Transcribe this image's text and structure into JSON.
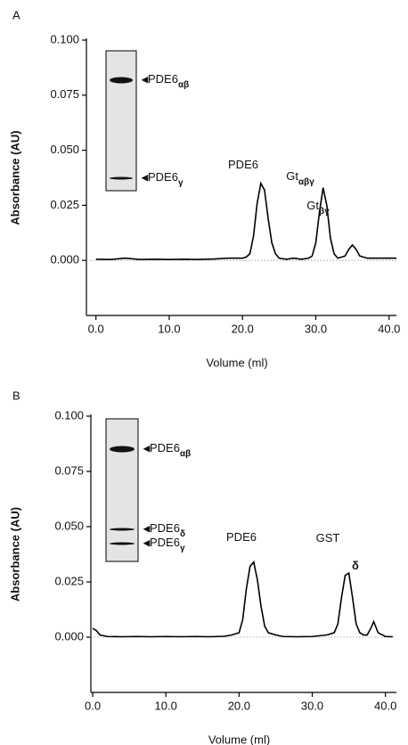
{
  "chart_data": [
    {
      "type": "line",
      "panel": "A",
      "ylabel": "Absorbance (AU)",
      "xlabel": "Volume (ml)",
      "color": "#000000",
      "xlim": [
        -1.3,
        41
      ],
      "ylim": [
        -0.025,
        0.1
      ],
      "xticks": [
        {
          "value": 0,
          "label": "0.0"
        },
        {
          "value": 10,
          "label": "10.0"
        },
        {
          "value": 20,
          "label": "20.0"
        },
        {
          "value": 30,
          "label": "30.0"
        },
        {
          "value": 40,
          "label": "40.0"
        }
      ],
      "yticks": [
        {
          "value": 0,
          "label": "0.000"
        },
        {
          "value": 0.025,
          "label": "0.025"
        },
        {
          "value": 0.05,
          "label": "0.050"
        },
        {
          "value": 0.075,
          "label": "0.075"
        },
        {
          "value": 0.1,
          "label": "0.100"
        }
      ],
      "x": [
        0,
        2,
        4,
        6,
        8,
        10,
        12,
        14,
        16,
        18,
        20,
        20.5,
        21,
        21.5,
        22,
        22.5,
        23,
        23.5,
        24,
        24.5,
        25,
        26,
        27,
        28,
        29,
        29.5,
        30,
        30.5,
        31,
        31.5,
        32,
        32.5,
        33,
        34,
        34.5,
        35,
        35.5,
        36,
        37,
        38,
        40,
        41
      ],
      "values": [
        0.0005,
        0.0004,
        0.001,
        0.0004,
        0.0005,
        0.0004,
        0.0005,
        0.0004,
        0.0006,
        0.001,
        0.001,
        0.0015,
        0.003,
        0.011,
        0.026,
        0.035,
        0.032,
        0.019,
        0.008,
        0.003,
        0.001,
        0.0005,
        0.001,
        0.0005,
        0.001,
        0.002,
        0.008,
        0.022,
        0.033,
        0.025,
        0.01,
        0.003,
        0.001,
        0.002,
        0.005,
        0.007,
        0.005,
        0.002,
        0.001,
        0.001,
        0.001,
        0.001
      ],
      "annotations": [
        {
          "text": "PDE6"
        },
        {
          "text": "Gt",
          "sub": "αβγ"
        },
        {
          "text": "Gt",
          "sub": "βγ"
        }
      ],
      "gel_labels": [
        {
          "text": "PDE6",
          "sub": "αβ"
        },
        {
          "text": "PDE6",
          "sub": "γ"
        }
      ]
    },
    {
      "type": "line",
      "panel": "B",
      "ylabel": "Absorbance (AU)",
      "xlabel": "Volume (ml)",
      "color": "#000000",
      "xlim": [
        -0.25,
        41.5
      ],
      "ylim": [
        -0.025,
        0.1
      ],
      "xticks": [
        {
          "value": 0,
          "label": "0.0"
        },
        {
          "value": 10,
          "label": "10.0"
        },
        {
          "value": 20,
          "label": "20.0"
        },
        {
          "value": 30,
          "label": "30.0"
        },
        {
          "value": 40,
          "label": "40.0"
        }
      ],
      "yticks": [
        {
          "value": 0,
          "label": "0.000"
        },
        {
          "value": 0.025,
          "label": "0.025"
        },
        {
          "value": 0.05,
          "label": "0.050"
        },
        {
          "value": 0.075,
          "label": "0.075"
        },
        {
          "value": 0.1,
          "label": "0.100"
        }
      ],
      "x": [
        0,
        0.5,
        1,
        2,
        4,
        6,
        8,
        10,
        12,
        14,
        16,
        18,
        19,
        20,
        20.5,
        21,
        21.5,
        22,
        22.5,
        23,
        23.5,
        24,
        25,
        26,
        28,
        30,
        32,
        33,
        33.5,
        34,
        34.5,
        35,
        35.5,
        36,
        36.5,
        37,
        37.5,
        38,
        38.4,
        39,
        40,
        41
      ],
      "values": [
        0.004,
        0.003,
        0.001,
        0.0003,
        0.0002,
        0.0003,
        0.0002,
        0.0003,
        0.0002,
        0.0003,
        0.0002,
        0.0004,
        0.001,
        0.002,
        0.008,
        0.022,
        0.032,
        0.034,
        0.026,
        0.014,
        0.005,
        0.002,
        0.001,
        0.0003,
        0.0002,
        0.0003,
        0.001,
        0.002,
        0.006,
        0.018,
        0.028,
        0.029,
        0.018,
        0.006,
        0.002,
        0.001,
        0.001,
        0.004,
        0.007,
        0.002,
        0.0003,
        0.0002
      ],
      "annotations": [
        {
          "text": "PDE6"
        },
        {
          "text": "GST"
        },
        {
          "text": "δ"
        }
      ],
      "gel_labels": [
        {
          "text": "PDE6",
          "sub": "αβ"
        },
        {
          "text": "PDE6",
          "sub": "δ"
        },
        {
          "text": "PDE6",
          "sub": "γ"
        }
      ]
    }
  ]
}
